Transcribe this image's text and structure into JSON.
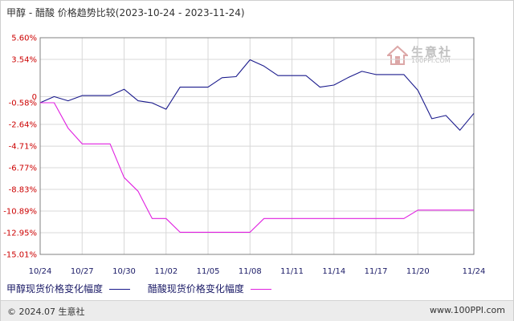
{
  "title": "甲醇 - 醋酸 价格趋势比较(2023-10-24 - 2023-11-24)",
  "chart_data": {
    "type": "line",
    "y_tick_labels": [
      "5.60%",
      "3.54%",
      "0",
      "-0.58%",
      "-2.64%",
      "-4.71%",
      "-6.77%",
      "-8.83%",
      "-10.89%",
      "-12.95%",
      "-15.01%"
    ],
    "y_tick_values": [
      5.6,
      3.54,
      0,
      -0.58,
      -2.64,
      -4.71,
      -6.77,
      -8.83,
      -10.89,
      -12.95,
      -15.01
    ],
    "ylim": [
      -15.01,
      5.6
    ],
    "x_tick_labels": [
      "10/24",
      "10/27",
      "10/30",
      "11/02",
      "11/05",
      "11/08",
      "11/11",
      "11/14",
      "11/17",
      "11/20",
      "11/24"
    ],
    "x_tick_days": [
      0,
      3,
      6,
      9,
      12,
      15,
      18,
      21,
      24,
      27,
      31
    ],
    "xlim": [
      0,
      31
    ],
    "grid": true,
    "legend_position": "bottom",
    "series": [
      {
        "name": "甲醇现货价格变化幅度",
        "color": "#1a1a8c",
        "points": [
          [
            0,
            -0.58
          ],
          [
            1,
            0
          ],
          [
            2,
            -0.4
          ],
          [
            3,
            0.1
          ],
          [
            5,
            0.1
          ],
          [
            6,
            0.7
          ],
          [
            7,
            -0.4
          ],
          [
            8,
            -0.6
          ],
          [
            9,
            -1.2
          ],
          [
            10,
            0.9
          ],
          [
            12,
            0.9
          ],
          [
            13,
            1.8
          ],
          [
            14,
            1.9
          ],
          [
            15,
            3.5
          ],
          [
            16,
            2.9
          ],
          [
            17,
            2.0
          ],
          [
            19,
            2.0
          ],
          [
            20,
            0.9
          ],
          [
            21,
            1.1
          ],
          [
            22,
            1.8
          ],
          [
            23,
            2.4
          ],
          [
            24,
            2.1
          ],
          [
            26,
            2.1
          ],
          [
            27,
            0.6
          ],
          [
            28,
            -2.1
          ],
          [
            29,
            -1.8
          ],
          [
            30,
            -3.2
          ],
          [
            31,
            -1.6
          ]
        ]
      },
      {
        "name": "醋酸现货价格变化幅度",
        "color": "#e020e0",
        "points": [
          [
            0,
            -0.58
          ],
          [
            1,
            -0.58
          ],
          [
            2,
            -3.0
          ],
          [
            3,
            -4.5
          ],
          [
            5,
            -4.5
          ],
          [
            6,
            -7.7
          ],
          [
            7,
            -9.0
          ],
          [
            8,
            -11.6
          ],
          [
            9,
            -11.6
          ],
          [
            10,
            -12.9
          ],
          [
            15,
            -12.9
          ],
          [
            16,
            -11.6
          ],
          [
            26,
            -11.6
          ],
          [
            27,
            -10.8
          ],
          [
            31,
            -10.8
          ]
        ]
      }
    ]
  },
  "footer": {
    "copyright": "© 2024.07 生意社",
    "url": "www.100PPI.com"
  },
  "watermark": {
    "name": "生意社",
    "url": "100PPI.COM"
  }
}
